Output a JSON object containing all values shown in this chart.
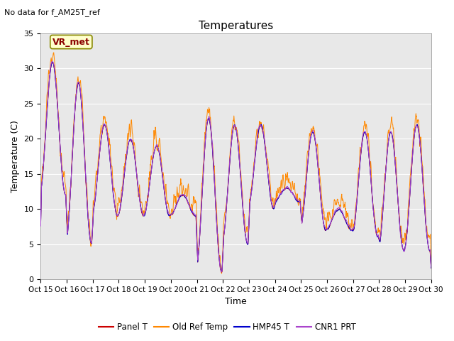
{
  "title": "Temperatures",
  "ylabel": "Temperature (C)",
  "xlabel": "Time",
  "note": "No data for f_AM25T_ref",
  "legend_label": "VR_met",
  "ylim": [
    0,
    35
  ],
  "series_colors": {
    "Panel T": "#cc0000",
    "Old Ref Temp": "#ff8800",
    "HMP45 T": "#0000cc",
    "CNR1 PRT": "#aa44cc"
  },
  "xtick_labels": [
    "Oct 15",
    "Oct 16",
    "Oct 17",
    "Oct 18",
    "Oct 19",
    "Oct 20",
    "Oct 21",
    "Oct 22",
    "Oct 23",
    "Oct 24",
    "Oct 25",
    "Oct 26",
    "Oct 27",
    "Oct 28",
    "Oct 29",
    "Oct 30"
  ],
  "ytick_labels": [
    "0",
    "5",
    "10",
    "15",
    "20",
    "25",
    "30",
    "35"
  ],
  "ytick_vals": [
    0,
    5,
    10,
    15,
    20,
    25,
    30,
    35
  ],
  "bg_color": "#e8e8e8",
  "fig_bg": "#ffffff",
  "grid_color": "#ffffff",
  "title_fontsize": 11,
  "axis_fontsize": 9,
  "tick_fontsize": 8,
  "note_fontsize": 8,
  "vr_fontsize": 9
}
